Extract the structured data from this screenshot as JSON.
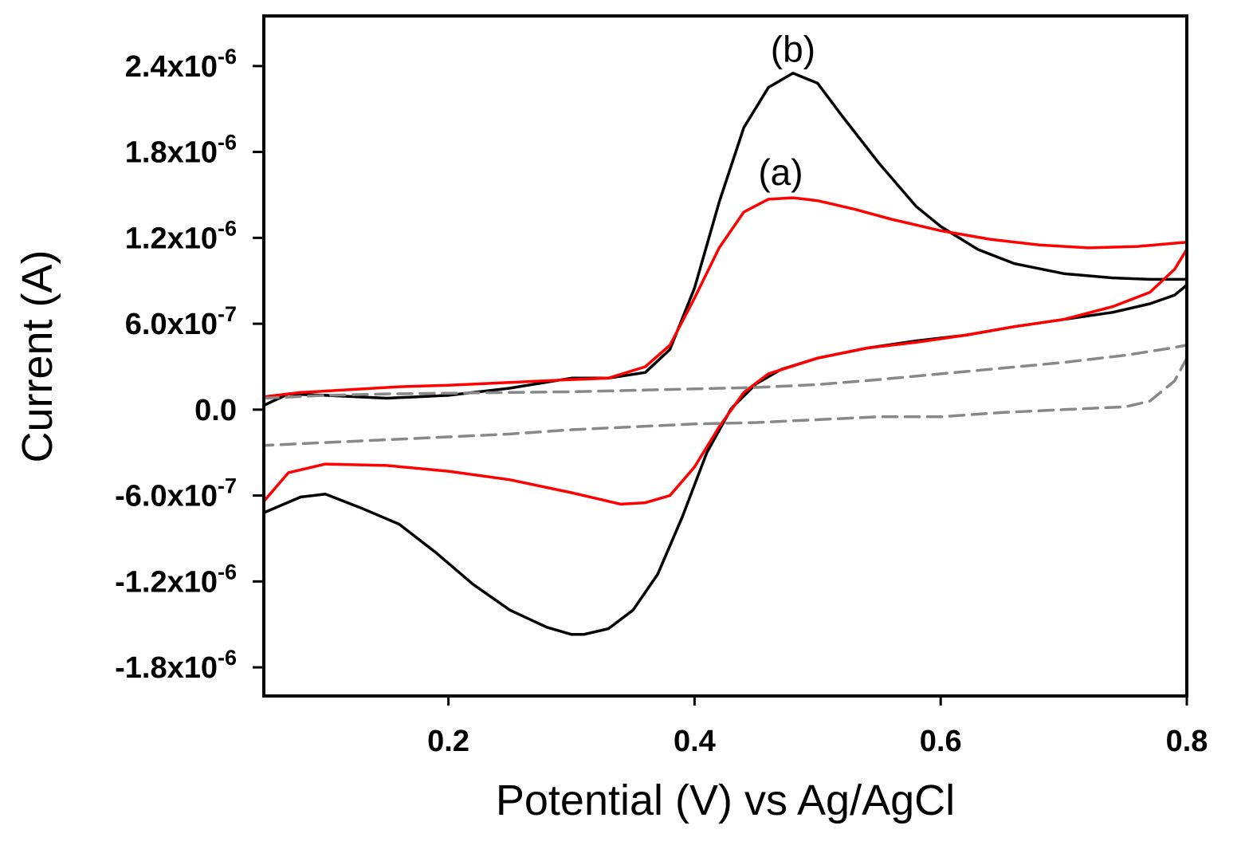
{
  "chart_data": {
    "type": "line",
    "xlabel": "Potential (V) vs Ag/AgCl",
    "ylabel": "Current (A)",
    "xlim": [
      0.05,
      0.8
    ],
    "ylim": [
      -2e-06,
      2.75e-06
    ],
    "grid": false,
    "x_ticks": [
      {
        "value": 0.2,
        "label": "0.2"
      },
      {
        "value": 0.4,
        "label": "0.4"
      },
      {
        "value": 0.6,
        "label": "0.6"
      },
      {
        "value": 0.8,
        "label": "0.8"
      }
    ],
    "y_ticks": [
      {
        "value": 2.4e-06,
        "mantissa": "2.4x10",
        "exponent": "-6"
      },
      {
        "value": 1.8e-06,
        "mantissa": "1.8x10",
        "exponent": "-6"
      },
      {
        "value": 1.2e-06,
        "mantissa": "1.2x10",
        "exponent": "-6"
      },
      {
        "value": 6e-07,
        "mantissa": "6.0x10",
        "exponent": "-7"
      },
      {
        "value": 0.0,
        "mantissa": "0.0",
        "exponent": ""
      },
      {
        "value": -6e-07,
        "mantissa": "-6.0x10",
        "exponent": "-7"
      },
      {
        "value": -1.2e-06,
        "mantissa": "-1.2x10",
        "exponent": "-6"
      },
      {
        "value": -1.8e-06,
        "mantissa": "-1.8x10",
        "exponent": "-6"
      }
    ],
    "annotations": [
      {
        "text": "(b)",
        "x": 0.48,
        "y": 2.43e-06
      },
      {
        "text": "(a)",
        "x": 0.47,
        "y": 1.57e-06
      }
    ],
    "series": [
      {
        "color": "#000000",
        "dash": "solid",
        "x": [
          0.05,
          0.07,
          0.1,
          0.15,
          0.2,
          0.25,
          0.3,
          0.33,
          0.36,
          0.38,
          0.4,
          0.42,
          0.44,
          0.46,
          0.48,
          0.5,
          0.52,
          0.55,
          0.58,
          0.6,
          0.63,
          0.66,
          0.7,
          0.74,
          0.77,
          0.8,
          0.8,
          0.79,
          0.77,
          0.74,
          0.7,
          0.66,
          0.62,
          0.58,
          0.54,
          0.5,
          0.47,
          0.45,
          0.43,
          0.41,
          0.39,
          0.37,
          0.35,
          0.33,
          0.31,
          0.3,
          0.28,
          0.25,
          0.22,
          0.19,
          0.16,
          0.13,
          0.1,
          0.08,
          0.05
        ],
        "y": [
          3e-08,
          1.1e-07,
          1e-07,
          8e-08,
          1e-07,
          1.5e-07,
          2.2e-07,
          2.2e-07,
          2.6e-07,
          4.2e-07,
          8.5e-07,
          1.45e-06,
          1.97e-06,
          2.25e-06,
          2.35e-06,
          2.28e-06,
          2.05e-06,
          1.72e-06,
          1.42e-06,
          1.28e-06,
          1.12e-06,
          1.02e-06,
          9.5e-07,
          9.2e-07,
          9.1e-07,
          9.1e-07,
          8.7e-07,
          8e-07,
          7.4e-07,
          6.8e-07,
          6.3e-07,
          5.8e-07,
          5.2e-07,
          4.8e-07,
          4.3e-07,
          3.6e-07,
          2.8e-07,
          1.8e-07,
          1e-08,
          -3e-07,
          -7.5e-07,
          -1.15e-06,
          -1.4e-06,
          -1.53e-06,
          -1.57e-06,
          -1.57e-06,
          -1.52e-06,
          -1.4e-06,
          -1.22e-06,
          -1e-06,
          -8e-07,
          -6.9e-07,
          -5.9e-07,
          -6.1e-07,
          -7.2e-07
        ]
      },
      {
        "color": "#ff0000",
        "dash": "solid",
        "x": [
          0.05,
          0.08,
          0.12,
          0.16,
          0.2,
          0.25,
          0.3,
          0.33,
          0.36,
          0.38,
          0.4,
          0.42,
          0.44,
          0.46,
          0.48,
          0.5,
          0.53,
          0.56,
          0.6,
          0.64,
          0.68,
          0.72,
          0.76,
          0.8,
          0.8,
          0.79,
          0.77,
          0.74,
          0.7,
          0.66,
          0.62,
          0.58,
          0.54,
          0.5,
          0.46,
          0.44,
          0.42,
          0.4,
          0.38,
          0.36,
          0.34,
          0.32,
          0.3,
          0.25,
          0.2,
          0.15,
          0.1,
          0.07,
          0.05
        ],
        "y": [
          9e-08,
          1.2e-07,
          1.4e-07,
          1.6e-07,
          1.7e-07,
          1.9e-07,
          2.1e-07,
          2.2e-07,
          3e-07,
          4.5e-07,
          7.8e-07,
          1.13e-06,
          1.38e-06,
          1.47e-06,
          1.48e-06,
          1.46e-06,
          1.4e-06,
          1.33e-06,
          1.25e-06,
          1.19e-06,
          1.15e-06,
          1.13e-06,
          1.14e-06,
          1.17e-06,
          1.12e-06,
          9.8e-07,
          8.2e-07,
          7.2e-07,
          6.3e-07,
          5.8e-07,
          5.2e-07,
          4.7e-07,
          4.3e-07,
          3.6e-07,
          2.5e-07,
          1.2e-07,
          -1.2e-07,
          -4e-07,
          -6e-07,
          -6.5e-07,
          -6.6e-07,
          -6.2e-07,
          -5.8e-07,
          -4.9e-07,
          -4.3e-07,
          -3.9e-07,
          -3.8e-07,
          -4.4e-07,
          -6.4e-07
        ]
      },
      {
        "color": "#888888",
        "dash": "dashed",
        "x": [
          0.05,
          0.1,
          0.15,
          0.2,
          0.25,
          0.3,
          0.35,
          0.4,
          0.45,
          0.5,
          0.55,
          0.6,
          0.65,
          0.7,
          0.75,
          0.78,
          0.8,
          0.8,
          0.79,
          0.77,
          0.75,
          0.7,
          0.65,
          0.6,
          0.55,
          0.5,
          0.45,
          0.4,
          0.35,
          0.3,
          0.25,
          0.2,
          0.15,
          0.1,
          0.05
        ],
        "y": [
          8e-08,
          1e-07,
          1.1e-07,
          1.15e-07,
          1.2e-07,
          1.25e-07,
          1.35e-07,
          1.45e-07,
          1.55e-07,
          1.75e-07,
          2.1e-07,
          2.5e-07,
          2.9e-07,
          3.3e-07,
          3.8e-07,
          4.2e-07,
          4.5e-07,
          3.6e-07,
          2e-07,
          6e-08,
          2e-08,
          0.0,
          -2e-08,
          -5e-08,
          -5e-08,
          -7e-08,
          -9e-08,
          -1e-07,
          -1.2e-07,
          -1.4e-07,
          -1.7e-07,
          -1.9e-07,
          -2.1e-07,
          -2.3e-07,
          -2.5e-07
        ]
      }
    ]
  }
}
